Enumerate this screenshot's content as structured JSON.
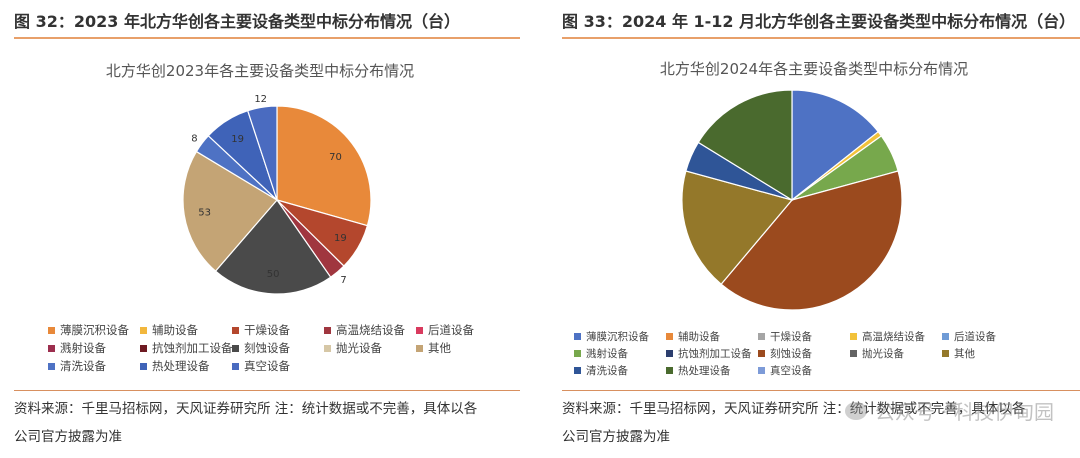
{
  "figure_left": {
    "title": "图 32：2023 年北方华创各主要设备类型中标分布情况（台）",
    "source_line1": "资料来源：千里马招标网，天风证券研究所 注：统计数据或不完善，具体以各",
    "source_line2": "公司官方披露为准"
  },
  "figure_right": {
    "title": "图 33：2024 年 1-12 月北方华创各主要设备类型中标分布情况（台）",
    "source_line1": "资料来源：千里马招标网，天风证券研究所 注：统计数据或不完善，具体以各",
    "source_line2": "公司官方披露为准"
  },
  "watermark": "公众号 · 科技伊甸园",
  "chart_data": [
    {
      "type": "pie",
      "title": "北方华创2023年各主要设备类型中标分布情况",
      "categories": [
        "薄膜沉积设备",
        "辅助设备",
        "干燥设备",
        "高温烧结设备",
        "后道设备",
        "溅射设备",
        "抗蚀剂加工设备",
        "刻蚀设备",
        "抛光设备",
        "其他",
        "清洗设备",
        "热处理设备",
        "真空设备"
      ],
      "values": [
        70,
        0,
        19,
        7,
        0,
        0,
        0,
        50,
        0,
        53,
        8,
        19,
        12
      ],
      "data_labels": [
        "70",
        "",
        "19",
        "7",
        "",
        "",
        "",
        "50",
        "",
        "53",
        "8",
        "19",
        "12"
      ],
      "colors": [
        "#E8893A",
        "#F2B73D",
        "#B4472D",
        "#A0363F",
        "#D93A5E",
        "#9C2E4E",
        "#6E1A22",
        "#4A4A4A",
        "#D6C7A6",
        "#C4A475",
        "#4E72C4",
        "#3F63B8",
        "#4A6BC0"
      ],
      "legend_position": "bottom"
    },
    {
      "type": "pie",
      "title": "北方华创2024年各主要设备类型中标分布情况",
      "categories": [
        "薄膜沉积设备",
        "辅助设备",
        "干燥设备",
        "高温烧结设备",
        "后道设备",
        "溅射设备",
        "抗蚀剂加工设备",
        "刻蚀设备",
        "抛光设备",
        "其他",
        "清洗设备",
        "热处理设备",
        "真空设备"
      ],
      "values": [
        38,
        0,
        0,
        2,
        0,
        15,
        0,
        107,
        0,
        48,
        12,
        43,
        0
      ],
      "colors": [
        "#4E72C4",
        "#E8893A",
        "#A5A5A5",
        "#F2C23A",
        "#6F9BD6",
        "#77A84C",
        "#2C3E6E",
        "#9B4A1E",
        "#636363",
        "#94782A",
        "#2F5597",
        "#4A6A2E",
        "#7D9BD8"
      ],
      "legend_position": "bottom"
    }
  ]
}
